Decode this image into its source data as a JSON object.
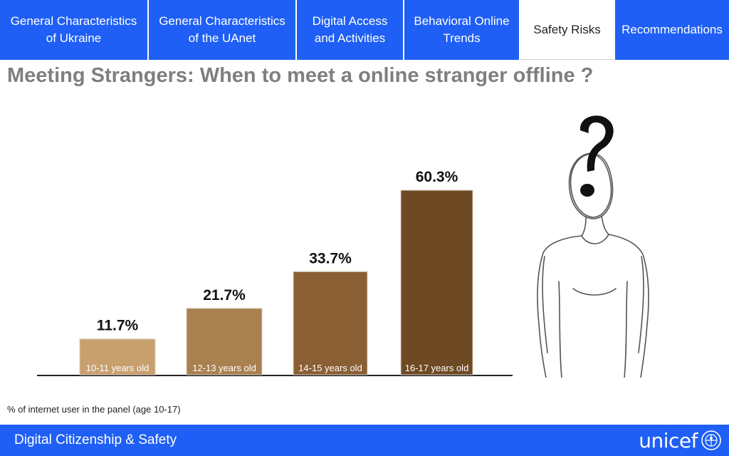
{
  "nav": {
    "tabs": [
      {
        "label_line1": "General Characteristics",
        "label_line2": "of Ukraine"
      },
      {
        "label_line1": "General Characteristics",
        "label_line2": "of the UAnet"
      },
      {
        "label_line1": "Digital Access",
        "label_line2": "and Activities"
      },
      {
        "label_line1": "Behavioral Online",
        "label_line2": "Trends"
      },
      {
        "label_line1": "Safety Risks",
        "label_line2": ""
      },
      {
        "label_line1": "Recommendations",
        "label_line2": ""
      }
    ],
    "active_tab": "Safety Risks"
  },
  "slide": {
    "title": "Meeting Strangers: When to  meet a online stranger offline ?",
    "note": "% of internet user in the panel (age 10-17)"
  },
  "chart_data": {
    "type": "bar",
    "categories": [
      "10-11 years old",
      "12-13 years old",
      "14-15 years old",
      "16-17 years old"
    ],
    "values": [
      11.7,
      21.7,
      33.7,
      60.3
    ],
    "data_labels": [
      "11.7%",
      "21.7%",
      "33.7%",
      "60.3%"
    ],
    "colors": [
      "#c8a06e",
      "#a9804f",
      "#8a5f34",
      "#6e4a24"
    ],
    "ylim": [
      0,
      60.3
    ],
    "grid": false,
    "title": "",
    "xlabel": "",
    "ylabel": ""
  },
  "footer": {
    "text": "Digital Citizenship & Safety",
    "logo_text": "unicef",
    "logo_icon": "unicef-emblem-icon"
  },
  "colors": {
    "nav_blue": "#1f5ff5",
    "title_gray": "#7f7f7f"
  }
}
